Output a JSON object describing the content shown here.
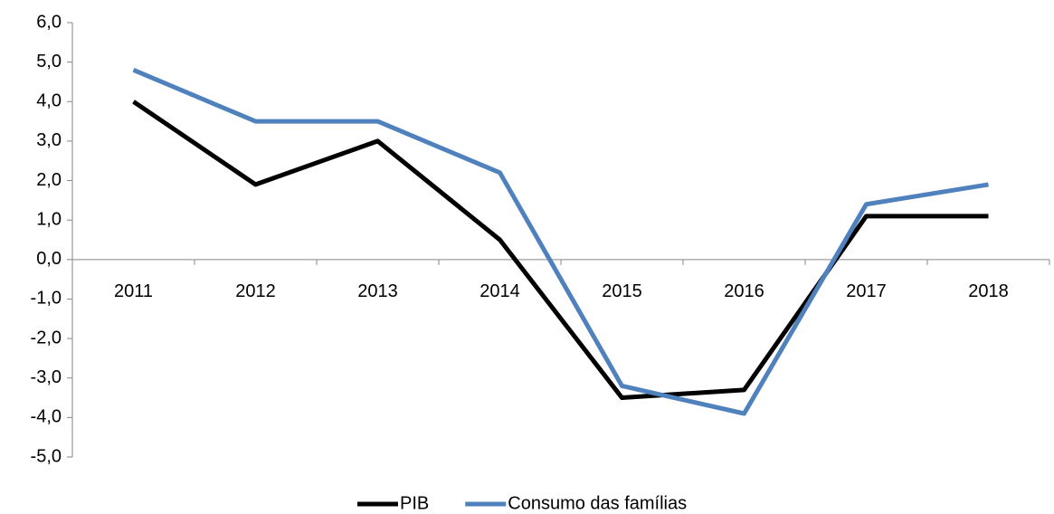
{
  "chart_data": {
    "type": "line",
    "categories": [
      "2011",
      "2012",
      "2013",
      "2014",
      "2015",
      "2016",
      "2017",
      "2018"
    ],
    "series": [
      {
        "name": "PIB",
        "color": "#000000",
        "values": [
          4.0,
          1.9,
          3.0,
          0.5,
          -3.5,
          -3.3,
          1.1,
          1.1
        ]
      },
      {
        "name": "Consumo das famílias",
        "color": "#4f81bd",
        "values": [
          4.8,
          3.5,
          3.5,
          2.2,
          -3.2,
          -3.9,
          1.4,
          1.9
        ]
      }
    ],
    "ylim": [
      -5,
      6
    ],
    "yticks": [
      {
        "value": -5,
        "label": "-5,0"
      },
      {
        "value": -4,
        "label": "-4,0"
      },
      {
        "value": -3,
        "label": "-3,0"
      },
      {
        "value": -2,
        "label": "-2,0"
      },
      {
        "value": -1,
        "label": "-1,0"
      },
      {
        "value": 0,
        "label": "0,0"
      },
      {
        "value": 1,
        "label": "1,0"
      },
      {
        "value": 2,
        "label": "2,0"
      },
      {
        "value": 3,
        "label": "3,0"
      },
      {
        "value": 4,
        "label": "4,0"
      },
      {
        "value": 5,
        "label": "5,0"
      },
      {
        "value": 6,
        "label": "6,0"
      }
    ],
    "grid": false,
    "legend": "bottom"
  }
}
